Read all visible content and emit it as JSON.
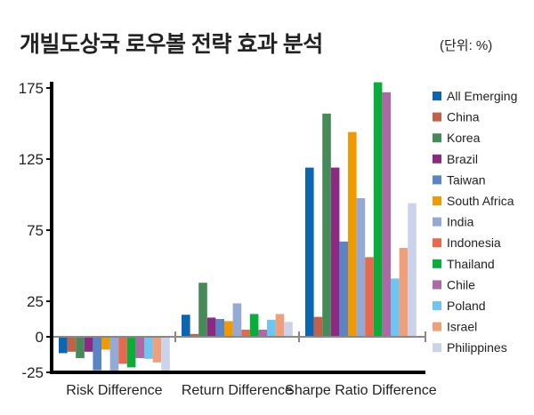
{
  "chart_data": {
    "type": "bar",
    "title": "개빌도상국 로우볼 전략 효과 분석",
    "unit_note": "(단위: %)",
    "xlabel": "",
    "ylabel": "",
    "ylim": [
      -25,
      180
    ],
    "yticks": [
      175,
      125,
      75,
      25,
      0,
      -25
    ],
    "legend_position": "right",
    "categories": [
      "Risk Difference",
      "Return Difference",
      "Sharpe Ratio Difference"
    ],
    "series": [
      {
        "name": "All Emerging",
        "color": "#0a66b0",
        "values": [
          -11.5,
          15.5,
          119
        ]
      },
      {
        "name": "China",
        "color": "#c0614a",
        "values": [
          -10.5,
          2,
          14
        ]
      },
      {
        "name": "Korea",
        "color": "#468a5a",
        "values": [
          -15,
          38,
          157
        ]
      },
      {
        "name": "Brazil",
        "color": "#8b2a82",
        "values": [
          -10.5,
          13.5,
          119
        ]
      },
      {
        "name": "Taiwan",
        "color": "#5a84c4",
        "values": [
          -23.5,
          12.5,
          67
        ]
      },
      {
        "name": "South Africa",
        "color": "#ee9a00",
        "values": [
          -9,
          11,
          144
        ]
      },
      {
        "name": "India",
        "color": "#93a9d6",
        "values": [
          -25,
          23.5,
          97.5
        ]
      },
      {
        "name": "Indonesia",
        "color": "#e5694a",
        "values": [
          -19,
          5,
          56
        ]
      },
      {
        "name": "Thailand",
        "color": "#0aac3a",
        "values": [
          -21.5,
          16,
          179
        ]
      },
      {
        "name": "Chile",
        "color": "#ae68a6",
        "values": [
          -15,
          5,
          172
        ]
      },
      {
        "name": "Poland",
        "color": "#6ec6f0",
        "values": [
          -15.5,
          12,
          41
        ]
      },
      {
        "name": "Israel",
        "color": "#efa07a",
        "values": [
          -18,
          16,
          62.5
        ]
      },
      {
        "name": "Philippines",
        "color": "#cbd3ea",
        "values": [
          -25,
          10.5,
          94
        ]
      }
    ]
  }
}
